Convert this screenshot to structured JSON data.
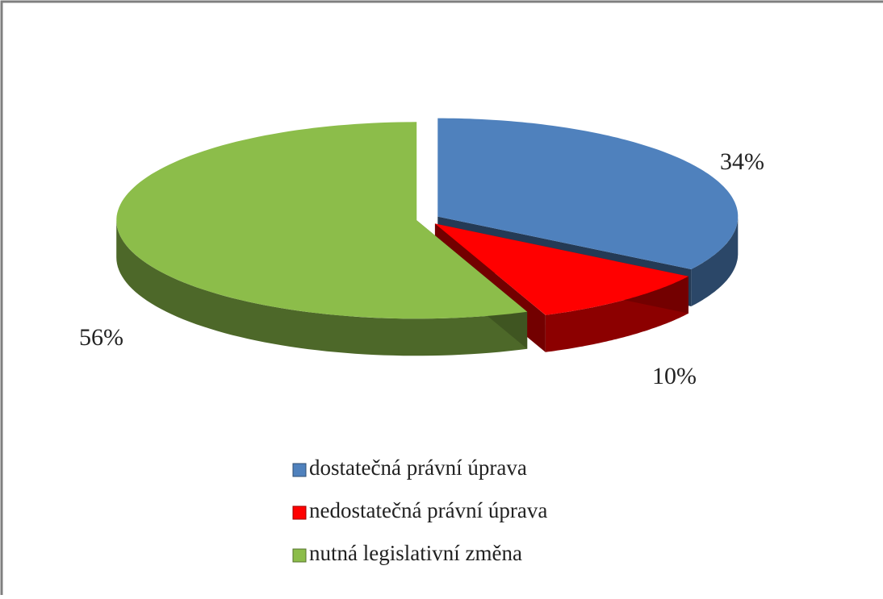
{
  "chart_data": {
    "type": "pie3d",
    "categories": [
      "dostatečná právní úprava",
      "nedostatečná právní úprava",
      "nutná legislativní změna"
    ],
    "values": [
      34,
      10,
      56
    ],
    "value_labels": [
      "34%",
      "10%",
      "56%"
    ],
    "colors": [
      "#4f81bd",
      "#ff0000",
      "#8cbd4a"
    ],
    "legend": "bottom"
  }
}
